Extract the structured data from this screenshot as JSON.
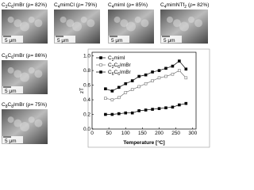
{
  "panels": [
    {
      "label": "C2C6ImBr (ρ= 82%)",
      "scale": "5 μm"
    },
    {
      "label": "C4mimCl (ρ= 79%)",
      "scale": "5 μm"
    },
    {
      "label": "C4mimI (ρ= 85%)",
      "scale": "5 μm"
    },
    {
      "label": "C4mimNTf2 (ρ= 82%)",
      "scale": "5 μm"
    },
    {
      "label": "C6C6ImBr (ρ= 86%)",
      "scale": "5 μm"
    },
    {
      "label": "C8C8ImBr (ρ= 75%)",
      "scale": "5 μm"
    }
  ],
  "chart_data": {
    "type": "line",
    "x_label": "Temperature [°C]",
    "y_label": "zT",
    "x": [
      40,
      60,
      80,
      100,
      120,
      140,
      160,
      180,
      200,
      220,
      240,
      260,
      280
    ],
    "series": [
      {
        "name": "C2mimI",
        "color": "#000000",
        "marker": "filled",
        "values": [
          0.55,
          0.52,
          0.57,
          0.62,
          0.66,
          0.72,
          0.74,
          0.78,
          0.8,
          0.83,
          0.86,
          0.93,
          0.82
        ]
      },
      {
        "name": "C2C6ImBr",
        "color": "#777777",
        "marker": "open",
        "values": [
          0.42,
          0.4,
          0.43,
          0.5,
          0.54,
          0.58,
          0.62,
          0.66,
          0.7,
          0.72,
          0.75,
          0.8,
          0.7
        ]
      },
      {
        "name": "C6C6ImBr",
        "color": "#000000",
        "marker": "filled",
        "values": [
          0.2,
          0.2,
          0.21,
          0.22,
          0.22,
          0.25,
          0.26,
          0.27,
          0.28,
          0.29,
          0.3,
          0.33,
          0.35
        ]
      }
    ],
    "xlim": [
      0,
      310
    ],
    "xticks": [
      0,
      50,
      100,
      150,
      200,
      250,
      300
    ],
    "ylim": [
      0,
      1.05
    ],
    "yticks": [
      {
        "value": 0,
        "label": "0.0"
      },
      0.2,
      0.4,
      0.6,
      0.8,
      {
        "value": 1,
        "label": "1.0"
      }
    ]
  }
}
